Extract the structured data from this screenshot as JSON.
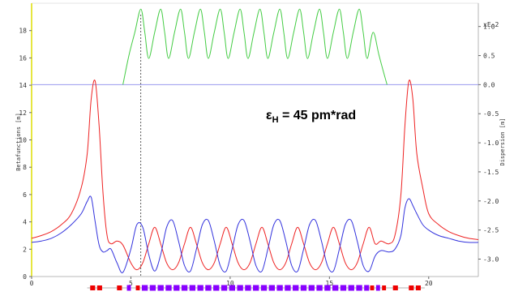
{
  "chart_data": {
    "type": "line",
    "xlabel": "",
    "ylabel_left": "Betafunctions [m]",
    "ylabel_right": "Dispersion [m]",
    "right_unit": "xE-2",
    "xlim": [
      0,
      22.5
    ],
    "ylim_left": [
      0,
      20
    ],
    "ylim_right": [
      -3.3,
      1.4
    ],
    "x_ticks": [
      "0",
      "5",
      "10",
      "15",
      "20"
    ],
    "y_ticks_left": [
      "0",
      "2",
      "4",
      "6",
      "8",
      "10",
      "12",
      "14",
      "16",
      "18"
    ],
    "y_ticks_right": [
      "1.0",
      "0.5",
      "0.0",
      "-0.5",
      "-1.0",
      "-1.5",
      "-2.0",
      "-2.5",
      "-3.0"
    ],
    "annotation": {
      "symbol": "ε",
      "subscript": "H",
      "text": " = 45 pm*rad"
    },
    "marker_x": 5.5,
    "series": [
      {
        "key": "beta_x",
        "axis": "left",
        "color": "#ee2222",
        "x": [
          0,
          0.5,
          1,
          1.5,
          2,
          2.5,
          2.8,
          3.0,
          3.2,
          3.4,
          3.6,
          3.8,
          4.0,
          4.3,
          4.6,
          5.0,
          5.3,
          5.6,
          5.9,
          6.2,
          6.5,
          6.8,
          7.1,
          7.4,
          7.7,
          8.0,
          8.3,
          8.6,
          8.9,
          9.2,
          9.5,
          9.8,
          10.1,
          10.4,
          10.7,
          11.0,
          11.3,
          11.6,
          11.9,
          12.2,
          12.5,
          12.8,
          13.1,
          13.4,
          13.7,
          14.0,
          14.3,
          14.6,
          14.9,
          15.2,
          15.5,
          15.8,
          16.1,
          16.4,
          16.7,
          17.0,
          17.3,
          17.6,
          18.0,
          18.3,
          18.6,
          18.8,
          19.0,
          19.2,
          19.4,
          19.7,
          20.0,
          20.5,
          21.0,
          21.5,
          22.0,
          22.5
        ],
        "values": [
          2.8,
          3.0,
          3.3,
          3.8,
          4.6,
          6.5,
          9.0,
          13.0,
          14.3,
          11.0,
          6.0,
          3.0,
          2.4,
          2.6,
          2.3,
          1.0,
          0.5,
          1.0,
          2.4,
          3.6,
          2.4,
          1.0,
          0.5,
          1.0,
          2.4,
          3.6,
          2.4,
          1.0,
          0.5,
          1.0,
          2.4,
          3.6,
          2.4,
          1.0,
          0.5,
          1.0,
          2.4,
          3.6,
          2.4,
          1.0,
          0.5,
          1.0,
          2.4,
          3.6,
          2.4,
          1.0,
          0.5,
          1.0,
          2.4,
          3.6,
          2.4,
          1.0,
          0.5,
          1.0,
          2.4,
          3.6,
          2.4,
          2.6,
          2.4,
          3.0,
          6.0,
          11.0,
          14.3,
          13.0,
          9.0,
          6.5,
          4.6,
          3.8,
          3.3,
          3.0,
          2.8,
          2.7
        ]
      },
      {
        "key": "beta_y",
        "axis": "left",
        "color": "#3333dd",
        "x": [
          0,
          0.5,
          1,
          1.5,
          2,
          2.5,
          2.8,
          3.0,
          3.2,
          3.4,
          3.6,
          3.8,
          4.0,
          4.3,
          4.6,
          5.0,
          5.3,
          5.6,
          5.9,
          6.2,
          6.5,
          6.8,
          7.1,
          7.4,
          7.7,
          8.0,
          8.3,
          8.6,
          8.9,
          9.2,
          9.5,
          9.8,
          10.1,
          10.4,
          10.7,
          11.0,
          11.3,
          11.6,
          11.9,
          12.2,
          12.5,
          12.8,
          13.1,
          13.4,
          13.7,
          14.0,
          14.3,
          14.6,
          14.9,
          15.2,
          15.5,
          15.8,
          16.1,
          16.4,
          16.7,
          17.0,
          17.3,
          17.6,
          18.0,
          18.3,
          18.6,
          18.8,
          19.0,
          19.2,
          19.4,
          19.7,
          20.0,
          20.5,
          21.0,
          21.5,
          22.0,
          22.5
        ],
        "values": [
          2.5,
          2.6,
          2.8,
          3.2,
          3.8,
          4.6,
          5.5,
          5.8,
          4.0,
          2.3,
          1.8,
          1.9,
          2.0,
          1.0,
          0.3,
          2.0,
          3.8,
          3.6,
          1.6,
          0.4,
          1.6,
          3.6,
          4.1,
          2.6,
          0.8,
          0.4,
          2.0,
          3.8,
          4.1,
          2.6,
          0.8,
          0.4,
          2.0,
          3.8,
          4.1,
          2.6,
          0.8,
          0.4,
          2.0,
          3.8,
          4.1,
          2.6,
          0.8,
          0.4,
          2.0,
          3.8,
          4.1,
          2.6,
          0.8,
          0.4,
          2.0,
          3.8,
          4.1,
          2.6,
          0.8,
          0.4,
          1.5,
          1.9,
          1.8,
          2.0,
          3.0,
          5.0,
          5.7,
          5.2,
          4.6,
          3.8,
          3.4,
          3.0,
          2.8,
          2.6,
          2.5,
          2.5
        ]
      },
      {
        "key": "dispersion",
        "axis": "right",
        "color": "#44cc44",
        "x": [
          4.6,
          4.9,
          5.2,
          5.5,
          5.7,
          5.9,
          6.2,
          6.5,
          6.7,
          6.9,
          7.2,
          7.5,
          7.7,
          7.9,
          8.2,
          8.5,
          8.7,
          8.9,
          9.2,
          9.5,
          9.7,
          9.9,
          10.2,
          10.5,
          10.7,
          10.9,
          11.2,
          11.5,
          11.7,
          11.9,
          12.2,
          12.5,
          12.7,
          12.9,
          13.2,
          13.5,
          13.7,
          13.9,
          14.2,
          14.5,
          14.7,
          14.9,
          15.2,
          15.5,
          15.7,
          15.9,
          16.2,
          16.5,
          16.7,
          16.9,
          17.2,
          17.5,
          17.9
        ],
        "values": [
          0.0,
          0.5,
          0.9,
          1.3,
          0.9,
          0.45,
          0.9,
          1.3,
          0.9,
          0.45,
          0.9,
          1.3,
          0.9,
          0.45,
          0.9,
          1.3,
          0.9,
          0.45,
          0.9,
          1.3,
          0.9,
          0.45,
          0.9,
          1.3,
          0.9,
          0.45,
          0.9,
          1.3,
          0.9,
          0.45,
          0.9,
          1.3,
          0.9,
          0.45,
          0.9,
          1.3,
          0.9,
          0.45,
          0.9,
          1.3,
          0.9,
          0.45,
          0.9,
          1.3,
          0.9,
          0.45,
          0.9,
          1.3,
          0.9,
          0.45,
          0.9,
          0.5,
          0.0
        ]
      }
    ],
    "zero_line": {
      "axis": "right",
      "value": 0.0,
      "color": "#9999ee"
    },
    "lattice": {
      "magnets": [
        {
          "x0": 2.95,
          "x1": 3.2,
          "type": "bend"
        },
        {
          "x0": 3.3,
          "x1": 3.55,
          "type": "bend"
        },
        {
          "x0": 4.3,
          "x1": 4.55,
          "type": "bend"
        },
        {
          "x0": 4.8,
          "x1": 5.0,
          "type": "quad"
        },
        {
          "x0": 5.25,
          "x1": 5.45,
          "type": "bend"
        },
        {
          "x0": 5.55,
          "x1": 5.85,
          "type": "quad"
        },
        {
          "x0": 5.95,
          "x1": 6.25,
          "type": "quad"
        },
        {
          "x0": 6.35,
          "x1": 6.65,
          "type": "quad"
        },
        {
          "x0": 6.75,
          "x1": 7.05,
          "type": "quad"
        },
        {
          "x0": 7.15,
          "x1": 7.45,
          "type": "quad"
        },
        {
          "x0": 7.55,
          "x1": 7.85,
          "type": "quad"
        },
        {
          "x0": 7.95,
          "x1": 8.25,
          "type": "quad"
        },
        {
          "x0": 8.35,
          "x1": 8.65,
          "type": "quad"
        },
        {
          "x0": 8.75,
          "x1": 9.05,
          "type": "quad"
        },
        {
          "x0": 9.15,
          "x1": 9.45,
          "type": "quad"
        },
        {
          "x0": 9.55,
          "x1": 9.85,
          "type": "quad"
        },
        {
          "x0": 9.95,
          "x1": 10.25,
          "type": "quad"
        },
        {
          "x0": 10.35,
          "x1": 10.65,
          "type": "quad"
        },
        {
          "x0": 10.75,
          "x1": 11.05,
          "type": "quad"
        },
        {
          "x0": 11.15,
          "x1": 11.45,
          "type": "quad"
        },
        {
          "x0": 11.55,
          "x1": 11.85,
          "type": "quad"
        },
        {
          "x0": 11.95,
          "x1": 12.25,
          "type": "quad"
        },
        {
          "x0": 12.35,
          "x1": 12.65,
          "type": "quad"
        },
        {
          "x0": 12.75,
          "x1": 13.05,
          "type": "quad"
        },
        {
          "x0": 13.15,
          "x1": 13.45,
          "type": "quad"
        },
        {
          "x0": 13.55,
          "x1": 13.85,
          "type": "quad"
        },
        {
          "x0": 13.95,
          "x1": 14.25,
          "type": "quad"
        },
        {
          "x0": 14.35,
          "x1": 14.65,
          "type": "quad"
        },
        {
          "x0": 14.75,
          "x1": 15.05,
          "type": "quad"
        },
        {
          "x0": 15.15,
          "x1": 15.45,
          "type": "quad"
        },
        {
          "x0": 15.55,
          "x1": 15.85,
          "type": "quad"
        },
        {
          "x0": 15.95,
          "x1": 16.25,
          "type": "quad"
        },
        {
          "x0": 16.35,
          "x1": 16.65,
          "type": "quad"
        },
        {
          "x0": 16.75,
          "x1": 17.0,
          "type": "quad"
        },
        {
          "x0": 17.05,
          "x1": 17.25,
          "type": "bend"
        },
        {
          "x0": 17.35,
          "x1": 17.55,
          "type": "quad"
        },
        {
          "x0": 17.65,
          "x1": 17.85,
          "type": "bend"
        },
        {
          "x0": 18.2,
          "x1": 18.45,
          "type": "bend"
        },
        {
          "x0": 19.0,
          "x1": 19.25,
          "type": "bend"
        },
        {
          "x0": 19.35,
          "x1": 19.6,
          "type": "bend"
        }
      ],
      "colors": {
        "bend": "#ee0000",
        "quad": "#8800ff"
      }
    }
  }
}
